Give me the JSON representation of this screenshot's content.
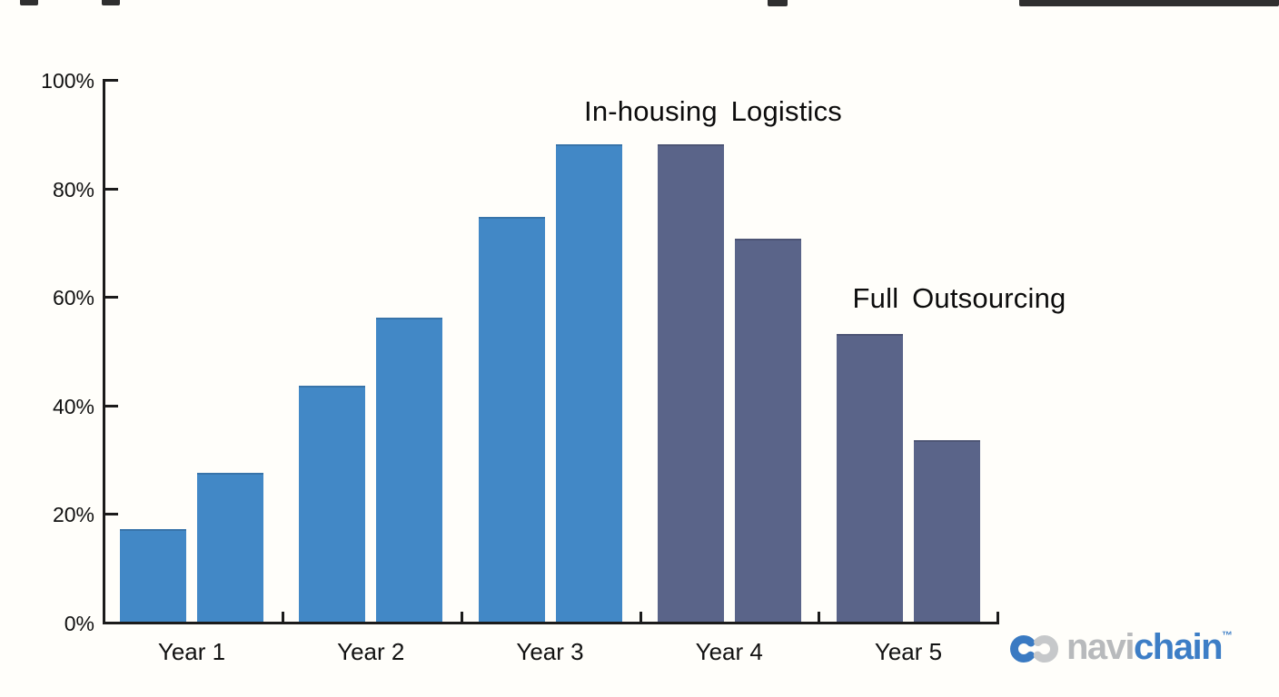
{
  "chart_data": {
    "type": "bar",
    "title": "",
    "categories": [
      "Year 1",
      "Year 2",
      "Year 3",
      "Year 4",
      "Year 5"
    ],
    "bar_pairs": [
      [
        17,
        27.5
      ],
      [
        43.5,
        56
      ],
      [
        74.5,
        88
      ],
      [
        88,
        70.5
      ],
      [
        53,
        33.5
      ]
    ],
    "pair_colors": [
      "#4288c6",
      "#4288c6",
      "#4288c6",
      "#5a6489",
      "#5a6489"
    ],
    "group_labels": [
      {
        "text": "In-housing Logistics",
        "applies_to": "blue bars, Years 1-3"
      },
      {
        "text": "Full Outsourcing",
        "applies_to": "slate bars, Years 4-5"
      }
    ],
    "y_ticks": [
      "100%",
      "80%",
      "60%",
      "40%",
      "20%",
      "0%"
    ],
    "y_tick_values": [
      100,
      80,
      60,
      40,
      20,
      0
    ],
    "ylim": [
      0,
      100
    ],
    "xlabel": "",
    "ylabel": "",
    "grid": false,
    "legend_position": "inline-annotations"
  },
  "colors": {
    "bar_blue": "#4288c6",
    "bar_slate": "#5a6489",
    "axis": "#1b1b1b"
  },
  "logo": {
    "navi": "navi",
    "chain": "chain",
    "tm": "™",
    "navi_color": "#b8babc",
    "chain_color": "#3d7ec6",
    "icon_blue": "#3a7ac2",
    "icon_gray": "#c6c8ca"
  }
}
